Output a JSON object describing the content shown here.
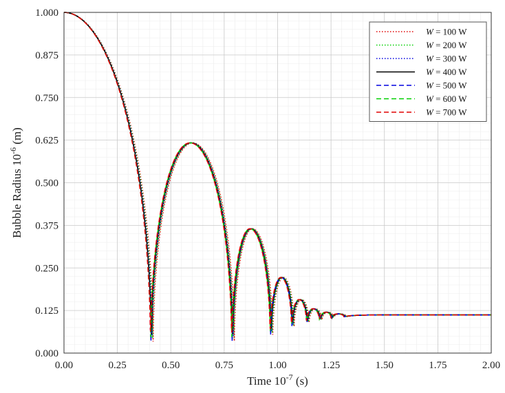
{
  "chart_data": {
    "type": "line",
    "title": "",
    "xlabel": {
      "prefix": "Time 10",
      "exp": "-7",
      "suffix": " (s)"
    },
    "ylabel": {
      "prefix": "Bubble Radius 10",
      "exp": "-6",
      "suffix": " (m)"
    },
    "xlim": [
      0,
      2
    ],
    "ylim": [
      0,
      1
    ],
    "x_ticks": [
      "0.00",
      "0.25",
      "0.50",
      "0.75",
      "1.00",
      "1.25",
      "1.50",
      "1.75",
      "2.00"
    ],
    "y_ticks": [
      "0.000",
      "0.125",
      "0.250",
      "0.375",
      "0.500",
      "0.625",
      "0.750",
      "0.875",
      "1.000"
    ],
    "grid": true,
    "legend_position": "top-right",
    "series": [
      {
        "name_italic": "W",
        "name_rest": " = 100 W",
        "color": "#e00000",
        "dash": "dotted",
        "shift": 0.012
      },
      {
        "name_italic": "W",
        "name_rest": " = 200 W",
        "color": "#00d000",
        "dash": "dotted",
        "shift": 0.009
      },
      {
        "name_italic": "W",
        "name_rest": " = 300 W",
        "color": "#0000e0",
        "dash": "dotted",
        "shift": 0.006
      },
      {
        "name_italic": "W",
        "name_rest": " = 400 W",
        "color": "#000000",
        "dash": "solid",
        "shift": 0.004
      },
      {
        "name_italic": "W",
        "name_rest": " = 500 W",
        "color": "#0000e0",
        "dash": "dashed",
        "shift": 0.002
      },
      {
        "name_italic": "W",
        "name_rest": " = 600 W",
        "color": "#00d000",
        "dash": "dashed",
        "shift": 0.001
      },
      {
        "name_italic": "W",
        "name_rest": " = 700 W",
        "color": "#e00000",
        "dash": "dashed",
        "shift": 0.0
      }
    ],
    "collapse_minima": [
      {
        "t": 0.405,
        "r": 0.01
      },
      {
        "t": 0.785,
        "r": 0.015
      },
      {
        "t": 0.965,
        "r": 0.04
      },
      {
        "t": 1.065,
        "r": 0.07
      },
      {
        "t": 1.135,
        "r": 0.085
      },
      {
        "t": 1.195,
        "r": 0.095
      },
      {
        "t": 1.25,
        "r": 0.102
      },
      {
        "t": 1.31,
        "r": 0.107
      }
    ],
    "rebound_peaks": [
      {
        "t": 0.59,
        "r": 0.617
      },
      {
        "t": 0.87,
        "r": 0.365
      },
      {
        "t": 1.015,
        "r": 0.222
      },
      {
        "t": 1.1,
        "r": 0.157
      },
      {
        "t": 1.165,
        "r": 0.13
      },
      {
        "t": 1.225,
        "r": 0.12
      },
      {
        "t": 1.28,
        "r": 0.115
      }
    ],
    "initial_radius": 1.0,
    "equilibrium_radius": 0.112
  }
}
